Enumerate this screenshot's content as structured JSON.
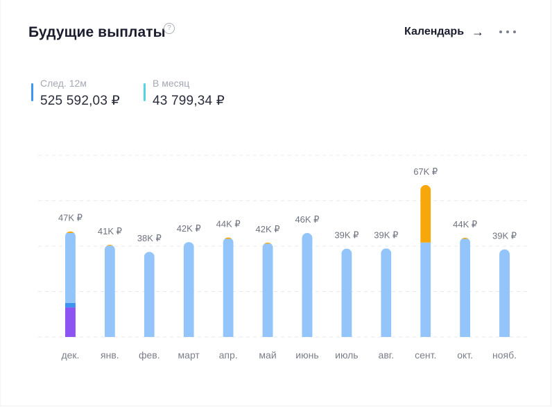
{
  "header": {
    "title": "Будущие выплаты",
    "help_icon": "question-icon",
    "help_glyph": "?",
    "calendar_label": "Календарь",
    "calendar_arrow": "→",
    "more_icon": "more-icon"
  },
  "stats": [
    {
      "label": "След. 12м",
      "value": "525 592,03 ₽",
      "color": "#3b97f0"
    },
    {
      "label": "В месяц",
      "value": "43 799,34 ₽",
      "color": "#56d4e0"
    }
  ],
  "colors": {
    "base": "#94c5fa",
    "extra": "#f7a70a",
    "segment_blue": "#3d94ef",
    "segment_purple": "#8e54f2",
    "grid": "#e6e8ee",
    "value_label": "#6f7380",
    "tick_label": "#7a7e8a"
  },
  "chart_data": {
    "type": "bar",
    "title": "Будущие выплаты",
    "xlabel": "",
    "ylabel": "",
    "ylim": [
      0,
      80
    ],
    "grid": true,
    "gridlines": [
      0,
      20,
      40,
      60,
      80
    ],
    "categories": [
      "дек.",
      "янв.",
      "фев.",
      "март",
      "апр.",
      "май",
      "июнь",
      "июль",
      "авг.",
      "сент.",
      "окт.",
      "нояб."
    ],
    "labels": [
      "47K ₽",
      "41K ₽",
      "38K ₽",
      "42K ₽",
      "44K ₽",
      "42K ₽",
      "46K ₽",
      "39K ₽",
      "39K ₽",
      "67K ₽",
      "44K ₽",
      "39K ₽"
    ],
    "totals": [
      46.5,
      40.6,
      37.5,
      41.8,
      43.8,
      41.6,
      45.8,
      38.9,
      39.0,
      66.9,
      43.7,
      38.6
    ],
    "series": [
      {
        "name": "purple",
        "colorKey": "segment_purple",
        "values": [
          13.0,
          0,
          0,
          0,
          0,
          0,
          0,
          0,
          0,
          0,
          0,
          0
        ]
      },
      {
        "name": "blue",
        "colorKey": "segment_blue",
        "values": [
          2.0,
          0,
          0,
          0,
          0,
          0,
          0,
          0,
          0,
          0,
          0,
          0
        ]
      },
      {
        "name": "base",
        "colorKey": "base",
        "values": [
          30.8,
          40.2,
          37.5,
          41.8,
          43.2,
          41.1,
          45.8,
          38.9,
          39.0,
          41.6,
          43.2,
          38.6
        ]
      },
      {
        "name": "extra",
        "colorKey": "extra",
        "values": [
          0.7,
          0.4,
          0,
          0,
          0.6,
          0.5,
          0,
          0,
          0,
          25.3,
          0.5,
          0
        ]
      }
    ]
  }
}
